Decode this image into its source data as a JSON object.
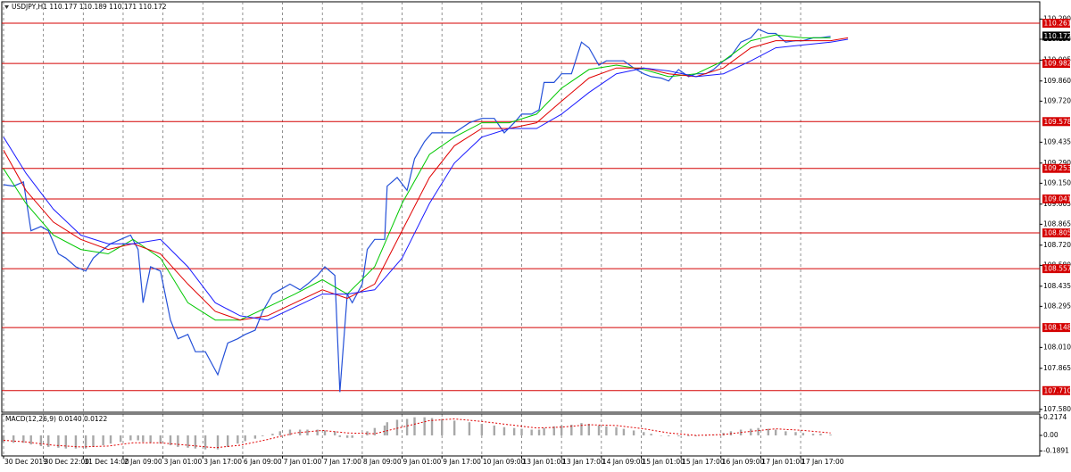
{
  "chart_data": [
    {
      "type": "line",
      "title": "USDJPY,H1  110.177 110.189 110.171 110.172",
      "xlim": [
        0,
        416
      ],
      "ylim": [
        107.56,
        110.41
      ],
      "grid": "vertical",
      "xticks": [
        {
          "value": 0,
          "label": "30 Dec 2019"
        },
        {
          "value": 16,
          "label": "30 Dec 22:00"
        },
        {
          "value": 32,
          "label": "31 Dec 14:00"
        },
        {
          "value": 48,
          "label": "2 Jan 09:00"
        },
        {
          "value": 64,
          "label": "3 Jan 01:00"
        },
        {
          "value": 80,
          "label": "3 Jan 17:00"
        },
        {
          "value": 96,
          "label": "6 Jan 09:00"
        },
        {
          "value": 112,
          "label": "7 Jan 01:00"
        },
        {
          "value": 128,
          "label": "7 Jan 17:00"
        },
        {
          "value": 144,
          "label": "8 Jan 09:00"
        },
        {
          "value": 160,
          "label": "9 Jan 01:00"
        },
        {
          "value": 176,
          "label": "9 Jan 17:00"
        },
        {
          "value": 192,
          "label": "10 Jan 09:00"
        },
        {
          "value": 208,
          "label": "13 Jan 01:00"
        },
        {
          "value": 224,
          "label": "13 Jan 17:00"
        },
        {
          "value": 240,
          "label": "14 Jan 09:00"
        },
        {
          "value": 256,
          "label": "15 Jan 01:00"
        },
        {
          "value": 272,
          "label": "15 Jan 17:00"
        },
        {
          "value": 288,
          "label": "16 Jan 09:00"
        },
        {
          "value": 304,
          "label": "17 Jan 01:00"
        },
        {
          "value": 320,
          "label": "17 Jan 17:00"
        }
      ],
      "yticks": [
        {
          "value": 107.58,
          "label": "107.580"
        },
        107.865,
        {
          "value": 108.01,
          "label": "108.010"
        },
        108.295,
        108.435,
        {
          "value": 108.58,
          "label": "108.580"
        },
        {
          "value": 108.72,
          "label": "108.720"
        },
        108.865,
        109.005,
        {
          "value": 109.15,
          "label": "109.150"
        },
        {
          "value": 109.29,
          "label": "109.290"
        },
        109.435,
        {
          "value": 109.72,
          "label": "109.720"
        },
        {
          "value": 109.86,
          "label": "109.860"
        },
        110.005,
        {
          "value": 110.15,
          "label": "110.150"
        },
        {
          "value": 110.29,
          "label": "110.290"
        }
      ],
      "hlines_color": "#d40000",
      "hlines": [
        110.261,
        109.982,
        109.578,
        109.253,
        109.041,
        108.805,
        108.557,
        108.148,
        {
          "value": 107.71,
          "label": "107.710"
        }
      ],
      "last": 110.172,
      "series": [
        {
          "name": "USDJPY",
          "color": "#2450d8",
          "width": 1.2,
          "x": [
            0,
            4,
            8,
            11,
            15,
            18,
            22,
            25,
            29,
            33,
            36,
            40,
            43,
            47,
            51,
            54,
            56,
            59,
            63,
            67,
            70,
            74,
            77,
            81,
            86,
            90,
            94,
            97,
            101,
            104,
            108,
            111,
            115,
            119,
            122,
            126,
            129,
            133,
            135,
            138,
            140,
            144,
            146,
            149,
            153,
            154,
            158,
            162,
            165,
            169,
            172,
            176,
            181,
            187,
            192,
            197,
            201,
            205,
            208,
            212,
            215,
            217,
            221,
            224,
            228,
            232,
            235,
            239,
            242,
            246,
            249,
            253,
            257,
            260,
            264,
            267,
            271,
            275,
            278,
            282,
            285,
            289,
            292,
            296,
            300,
            303,
            307,
            310,
            314,
            318,
            321,
            325,
            328,
            332
          ],
          "values": [
            109.14,
            109.13,
            109.16,
            108.82,
            108.85,
            108.82,
            108.66,
            108.63,
            108.57,
            108.54,
            108.63,
            108.69,
            108.73,
            108.76,
            108.79,
            108.69,
            108.32,
            108.57,
            108.54,
            108.2,
            108.07,
            108.1,
            107.98,
            107.98,
            107.82,
            108.04,
            108.07,
            108.1,
            108.13,
            108.26,
            108.38,
            108.41,
            108.45,
            108.41,
            108.45,
            108.51,
            108.57,
            108.51,
            107.7,
            108.38,
            108.32,
            108.45,
            108.69,
            108.76,
            108.76,
            109.13,
            109.19,
            109.1,
            109.32,
            109.44,
            109.5,
            109.5,
            109.5,
            109.57,
            109.6,
            109.6,
            109.5,
            109.57,
            109.63,
            109.63,
            109.66,
            109.85,
            109.85,
            109.91,
            109.91,
            110.13,
            110.09,
            109.97,
            110.0,
            110.0,
            110.0,
            109.95,
            109.91,
            109.89,
            109.88,
            109.86,
            109.94,
            109.89,
            109.91,
            109.91,
            109.94,
            110.0,
            110.03,
            110.13,
            110.16,
            110.22,
            110.19,
            110.19,
            110.13,
            110.14,
            110.14,
            110.16,
            110.16,
            110.17
          ]
        },
        {
          "color": "#00c800",
          "width": 1,
          "x": [
            0,
            9,
            20,
            31,
            42,
            52,
            63,
            74,
            85,
            95,
            106,
            117,
            128,
            138,
            149,
            160,
            171,
            181,
            192,
            203,
            214,
            224,
            235,
            246,
            257,
            267,
            278,
            289,
            300,
            310,
            321,
            332,
            339
          ],
          "values": [
            109.25,
            109.01,
            108.79,
            108.69,
            108.66,
            108.76,
            108.63,
            108.32,
            108.2,
            108.2,
            108.29,
            108.38,
            108.48,
            108.38,
            108.57,
            109.01,
            109.35,
            109.47,
            109.57,
            109.57,
            109.63,
            109.81,
            109.94,
            109.97,
            109.94,
            109.89,
            109.91,
            110.0,
            110.14,
            110.18,
            110.16,
            110.16,
            null
          ]
        },
        {
          "color": "#e00000",
          "width": 1,
          "x": [
            0,
            9,
            20,
            31,
            42,
            52,
            63,
            74,
            85,
            95,
            106,
            117,
            128,
            138,
            149,
            160,
            171,
            181,
            192,
            203,
            214,
            224,
            235,
            246,
            257,
            267,
            278,
            289,
            300,
            310,
            321,
            332,
            339
          ],
          "values": [
            109.38,
            109.1,
            108.88,
            108.76,
            108.69,
            108.73,
            108.66,
            108.45,
            108.26,
            108.2,
            108.23,
            108.32,
            108.41,
            108.35,
            108.45,
            108.82,
            109.19,
            109.41,
            109.53,
            109.53,
            109.57,
            109.72,
            109.88,
            109.95,
            109.95,
            109.91,
            109.89,
            109.95,
            110.09,
            110.14,
            110.14,
            110.14,
            110.16
          ]
        },
        {
          "color": "#1a1aff",
          "width": 1,
          "x": [
            0,
            9,
            20,
            31,
            42,
            52,
            63,
            74,
            85,
            95,
            106,
            117,
            128,
            138,
            149,
            160,
            171,
            181,
            192,
            203,
            214,
            224,
            235,
            246,
            257,
            267,
            278,
            289,
            300,
            310,
            321,
            332,
            339
          ],
          "values": [
            109.47,
            109.22,
            108.97,
            108.79,
            108.73,
            108.73,
            108.76,
            108.57,
            108.32,
            108.23,
            108.2,
            108.29,
            108.38,
            108.38,
            108.41,
            108.63,
            109.01,
            109.29,
            109.47,
            109.53,
            109.53,
            109.63,
            109.78,
            109.91,
            109.95,
            109.93,
            109.89,
            109.91,
            110.0,
            110.09,
            110.11,
            110.13,
            110.15
          ]
        }
      ]
    },
    {
      "type": "bar",
      "title": "MACD(12,26,9) 0.0140 0.0122",
      "xlim": [
        0,
        416
      ],
      "ylim": [
        -0.25,
        0.26
      ],
      "yticks": [
        0.2174,
        {
          "value": 0,
          "label": "0.00"
        },
        -0.1891
      ],
      "series": [
        {
          "type": "bar",
          "color": "#a8a8a8",
          "x": [
            0,
            4,
            8,
            11,
            15,
            18,
            22,
            25,
            29,
            33,
            36,
            40,
            43,
            47,
            51,
            54,
            56,
            59,
            63,
            67,
            70,
            74,
            77,
            81,
            86,
            90,
            94,
            97,
            101,
            104,
            108,
            111,
            115,
            119,
            122,
            126,
            129,
            133,
            135,
            138,
            140,
            144,
            146,
            149,
            153,
            154,
            158,
            162,
            165,
            169,
            172,
            176,
            181,
            187,
            192,
            197,
            201,
            205,
            208,
            212,
            215,
            217,
            221,
            224,
            228,
            232,
            235,
            239,
            242,
            246,
            249,
            253,
            257,
            260,
            264,
            267,
            271,
            275,
            278,
            282,
            285,
            289,
            292,
            296,
            300,
            303,
            307,
            310,
            314,
            318,
            321,
            325,
            328,
            332
          ],
          "values": [
            -0.08,
            -0.09,
            -0.09,
            -0.11,
            -0.13,
            -0.14,
            -0.15,
            -0.16,
            -0.16,
            -0.16,
            -0.14,
            -0.12,
            -0.1,
            -0.08,
            -0.06,
            -0.06,
            -0.08,
            -0.09,
            -0.1,
            -0.12,
            -0.14,
            -0.15,
            -0.16,
            -0.17,
            -0.17,
            -0.14,
            -0.1,
            -0.07,
            -0.04,
            -0.01,
            0.02,
            0.05,
            0.07,
            0.07,
            0.07,
            0.07,
            0.06,
            0.05,
            -0.02,
            -0.03,
            -0.03,
            0.0,
            0.05,
            0.09,
            0.12,
            0.16,
            0.19,
            0.2,
            0.22,
            0.22,
            0.21,
            0.2,
            0.18,
            0.16,
            0.14,
            0.12,
            0.1,
            0.09,
            0.08,
            0.07,
            0.07,
            0.09,
            0.11,
            0.12,
            0.13,
            0.15,
            0.14,
            0.12,
            0.11,
            0.1,
            0.08,
            0.06,
            0.04,
            0.02,
            0.0,
            -0.01,
            -0.01,
            -0.01,
            -0.01,
            0.0,
            0.01,
            0.03,
            0.05,
            0.07,
            0.08,
            0.09,
            0.08,
            0.07,
            0.05,
            0.04,
            0.03,
            0.02,
            0.02,
            0.01
          ]
        },
        {
          "type": "line",
          "color": "#e00000",
          "dash": "2,2",
          "width": 1,
          "x": [
            0,
            9,
            20,
            31,
            42,
            52,
            63,
            74,
            85,
            95,
            106,
            117,
            128,
            138,
            149,
            160,
            171,
            181,
            192,
            203,
            214,
            224,
            235,
            246,
            257,
            267,
            278,
            289,
            300,
            310,
            321,
            332,
            339
          ],
          "values": [
            -0.06,
            -0.08,
            -0.12,
            -0.14,
            -0.13,
            -0.09,
            -0.09,
            -0.12,
            -0.15,
            -0.12,
            -0.05,
            0.03,
            0.06,
            0.03,
            0.02,
            0.1,
            0.18,
            0.2,
            0.17,
            0.13,
            0.09,
            0.1,
            0.13,
            0.12,
            0.08,
            0.03,
            0.0,
            0.01,
            0.05,
            0.08,
            0.06,
            0.03,
            null
          ]
        }
      ]
    }
  ]
}
